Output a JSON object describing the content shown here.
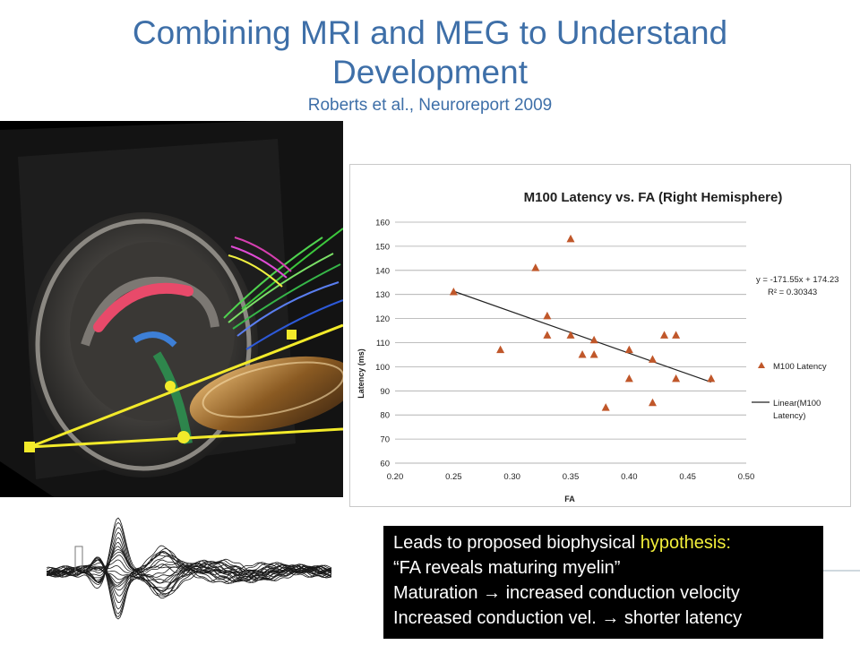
{
  "title": {
    "line1": "Combining MRI and MEG to Understand",
    "line2": "Development",
    "citation": "Roberts et al., Neuroreport 2009"
  },
  "chart_data": {
    "type": "scatter",
    "title": "M100 Latency vs. FA (Right Hemisphere)",
    "xlabel": "FA",
    "ylabel": "Latency (ms)",
    "xlim": [
      0.2,
      0.5
    ],
    "ylim": [
      60,
      160
    ],
    "xticks": [
      "0.20",
      "0.25",
      "0.30",
      "0.35",
      "0.40",
      "0.45",
      "0.50"
    ],
    "yticks": [
      "60",
      "70",
      "80",
      "90",
      "100",
      "110",
      "120",
      "130",
      "140",
      "150",
      "160"
    ],
    "grid": "horizontal",
    "legend_position": "right",
    "series": [
      {
        "name": "M100 Latency",
        "marker": "triangle",
        "color": "#c0572a",
        "points": [
          [
            0.25,
            131
          ],
          [
            0.29,
            107
          ],
          [
            0.32,
            141
          ],
          [
            0.33,
            121
          ],
          [
            0.33,
            113
          ],
          [
            0.35,
            153
          ],
          [
            0.35,
            113
          ],
          [
            0.36,
            105
          ],
          [
            0.37,
            111
          ],
          [
            0.37,
            105
          ],
          [
            0.38,
            83
          ],
          [
            0.4,
            107
          ],
          [
            0.4,
            95
          ],
          [
            0.42,
            103
          ],
          [
            0.42,
            85
          ],
          [
            0.43,
            113
          ],
          [
            0.44,
            113
          ],
          [
            0.44,
            95
          ],
          [
            0.47,
            95
          ]
        ]
      },
      {
        "name": "Linear(M100 Latency)",
        "type": "trendline",
        "color": "#222222",
        "slope": -171.55,
        "intercept": 174.23,
        "x_range": [
          0.25,
          0.47
        ]
      }
    ],
    "annotations": {
      "equation": "y = -171.55x + 174.23",
      "r_squared": "R² = 0.30343"
    },
    "legend": [
      {
        "label": "M100 Latency",
        "symbol": "triangle"
      },
      {
        "label_line1": "Linear(M100",
        "label_line2": "Latency)",
        "symbol": "line"
      }
    ]
  },
  "hypothesis": {
    "line1_prefix": "Leads to proposed biophysical ",
    "line1_highlight": "hypothesis:",
    "line2": "“FA reveals maturing myelin”",
    "line3": "Maturation → increased conduction velocity",
    "line4": "Increased conduction vel. → shorter latency"
  }
}
